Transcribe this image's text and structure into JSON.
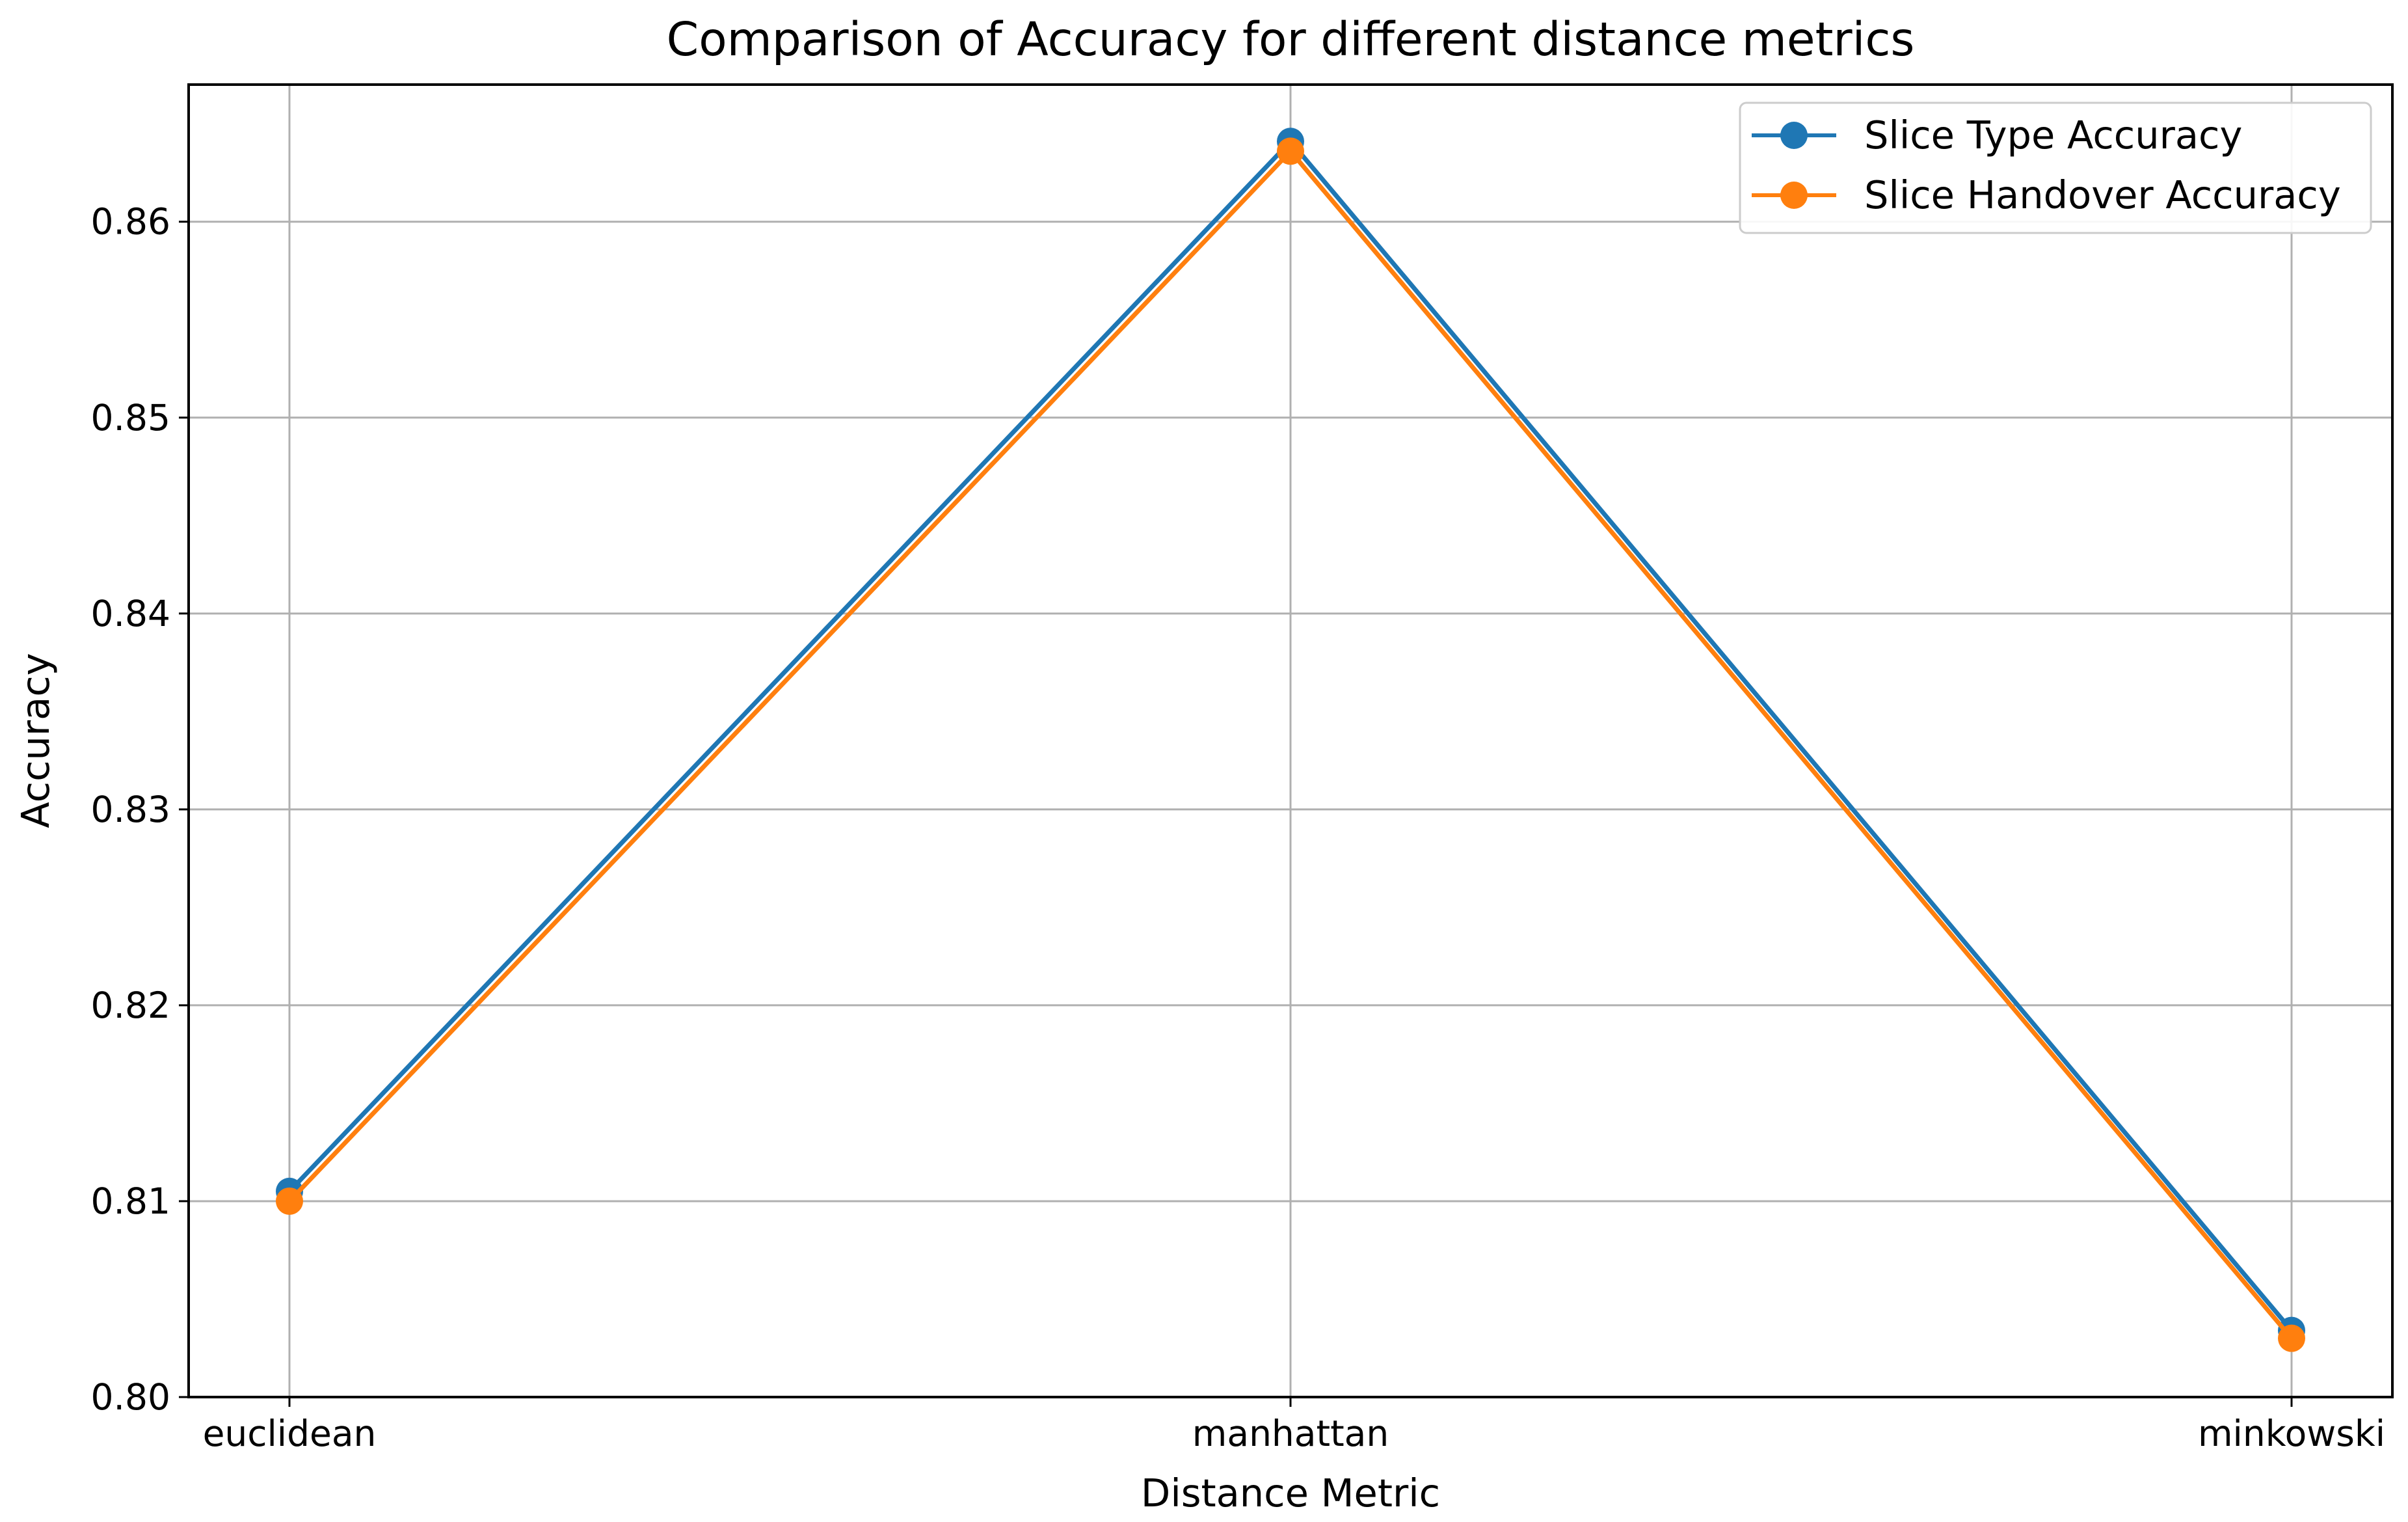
{
  "chart_data": {
    "type": "line",
    "title": "Comparison of Accuracy for different distance metrics",
    "xlabel": "Distance Metric",
    "ylabel": "Accuracy",
    "categories": [
      "euclidean",
      "manhattan",
      "minkowski"
    ],
    "ylim": [
      0.8,
      0.867
    ],
    "yticks": [
      0.8,
      0.81,
      0.82,
      0.83,
      0.84,
      0.85,
      0.86
    ],
    "ytick_labels": [
      "0.80",
      "0.81",
      "0.82",
      "0.83",
      "0.84",
      "0.85",
      "0.86"
    ],
    "grid": true,
    "legend_position": "top-right",
    "series": [
      {
        "name": "Slice Type Accuracy",
        "color": "#1f77b4",
        "values": [
          0.8105,
          0.8641,
          0.8034
        ]
      },
      {
        "name": "Slice Handover Accuracy",
        "color": "#ff7f0e",
        "values": [
          0.81,
          0.8636,
          0.803
        ]
      }
    ]
  }
}
